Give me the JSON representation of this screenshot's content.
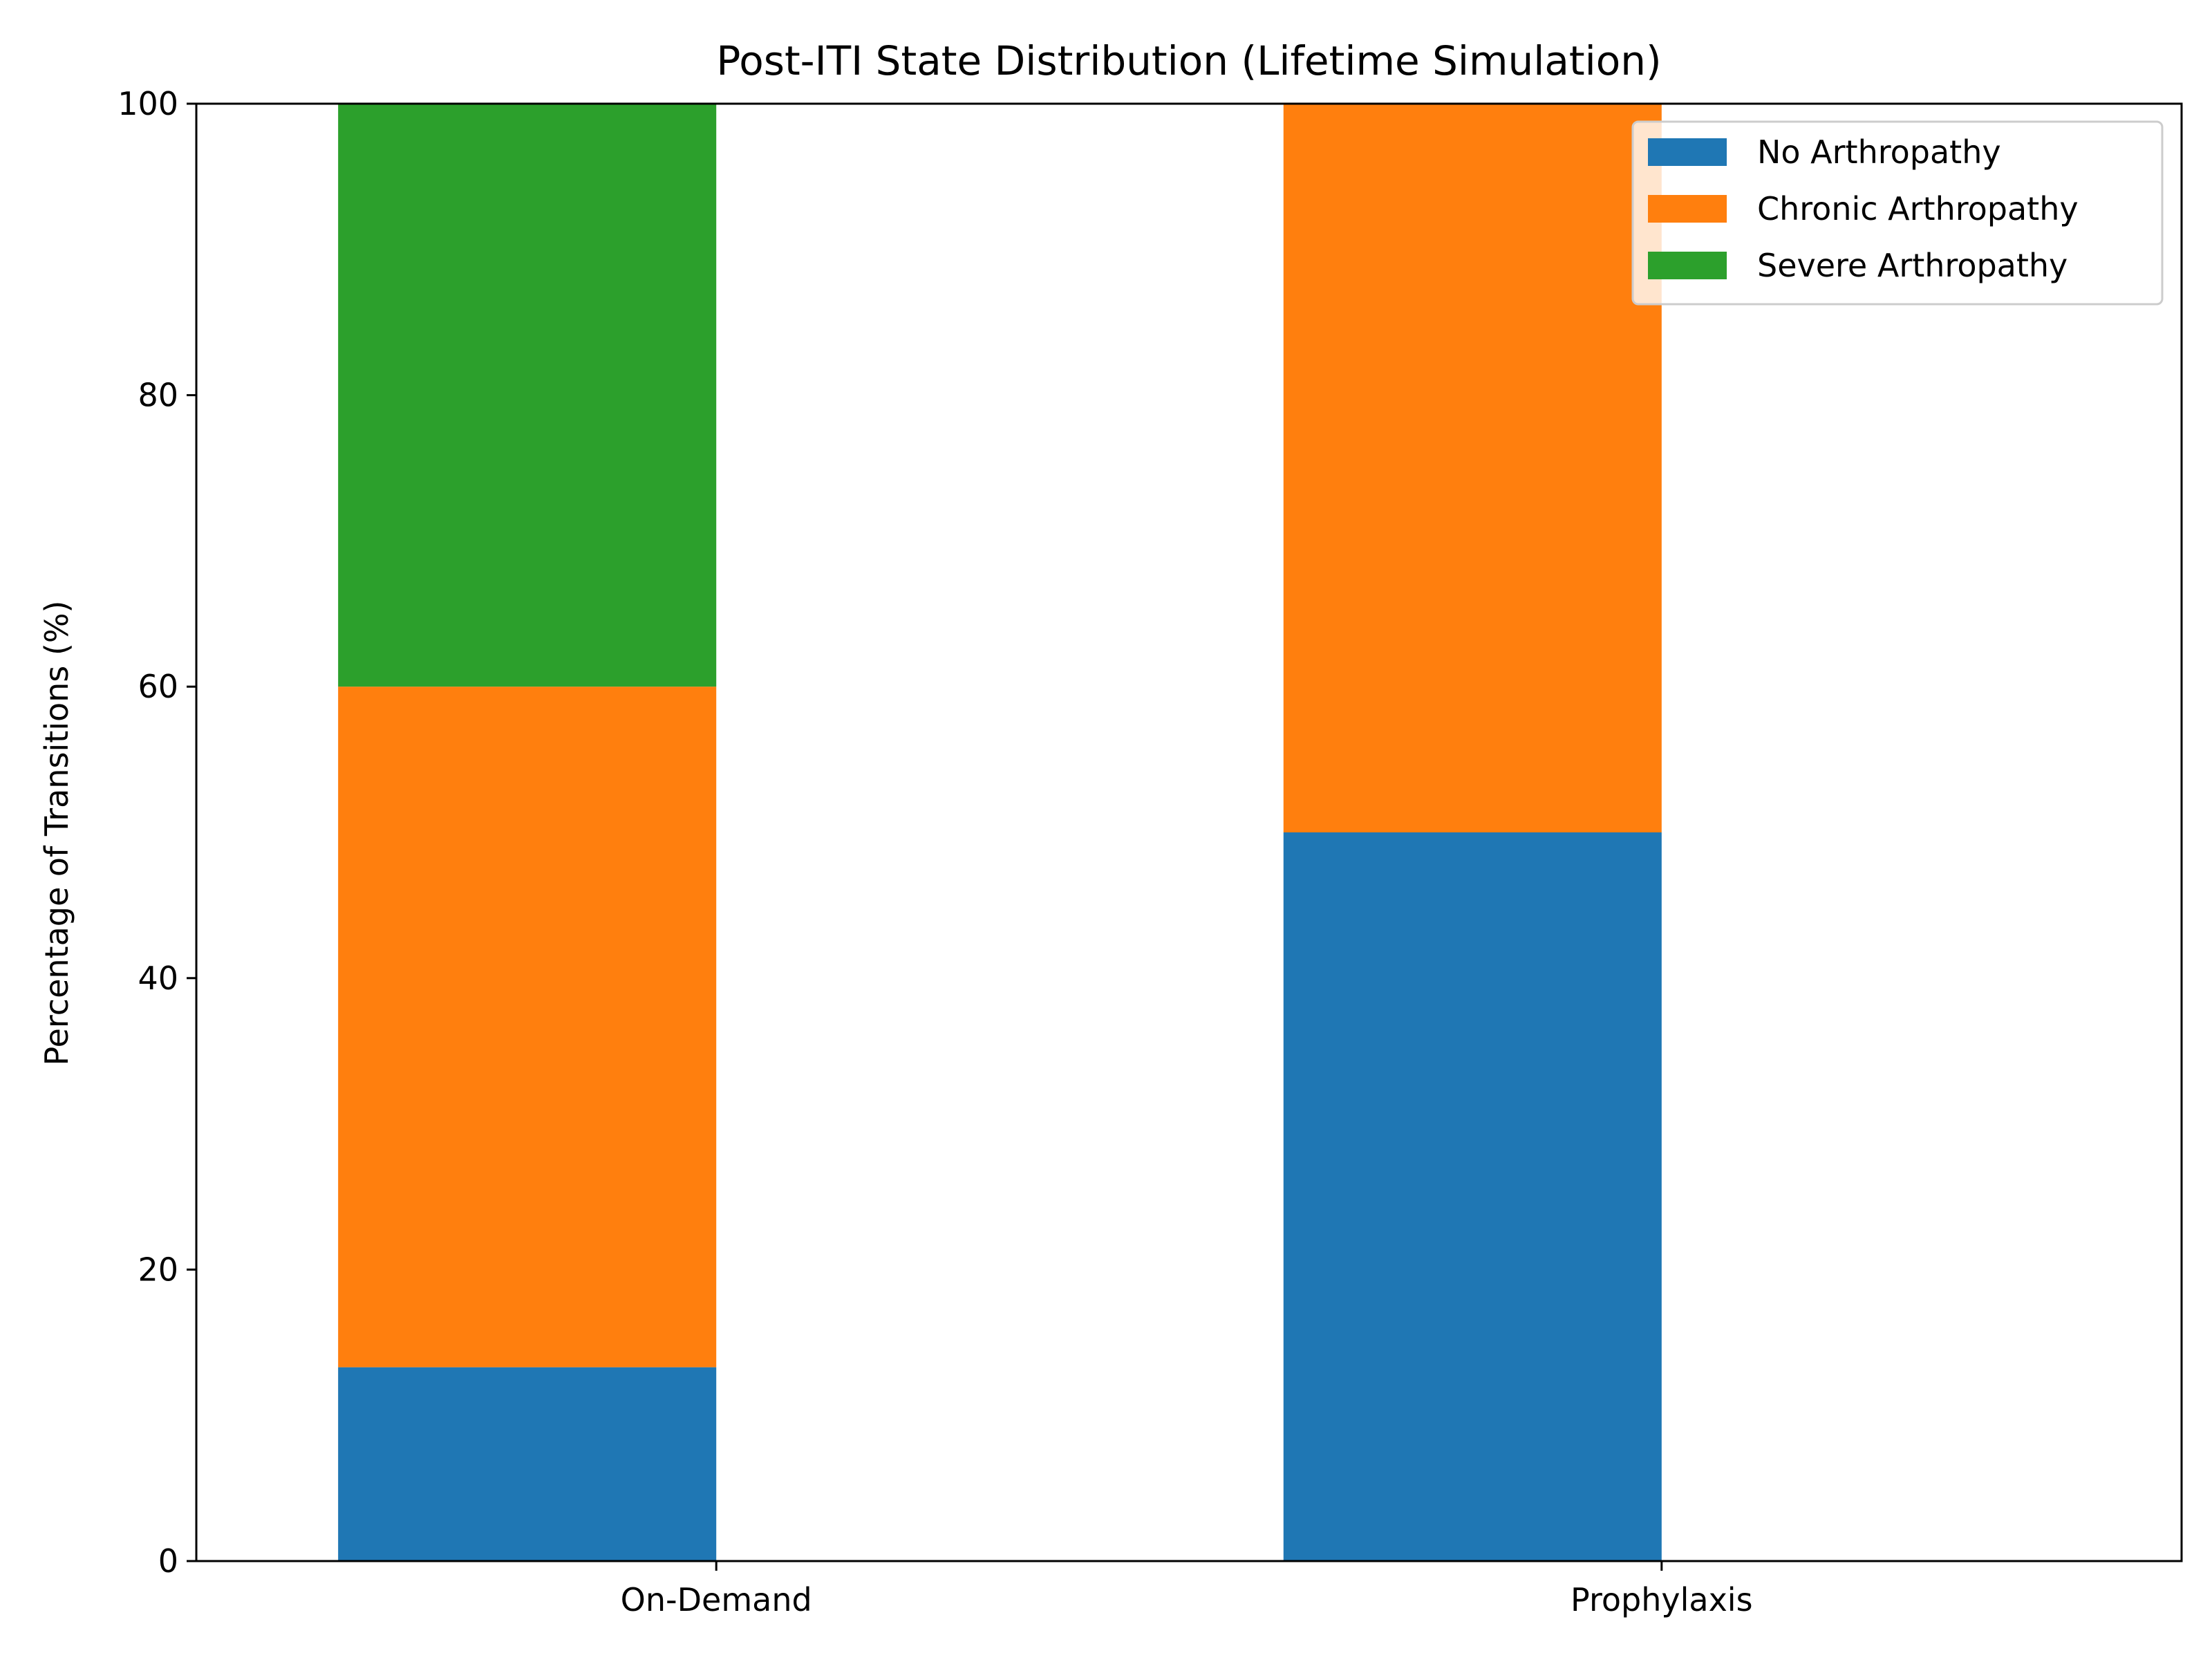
{
  "chart_data": {
    "type": "bar",
    "stacked": true,
    "title": "Post-ITI State Distribution (Lifetime Simulation)",
    "xlabel": "",
    "ylabel": "Percentage of Transitions (%)",
    "categories": [
      "On-Demand",
      "Prophylaxis"
    ],
    "series": [
      {
        "name": "No Arthropathy",
        "values": [
          13.3,
          50.0
        ],
        "color": "#1f77b4"
      },
      {
        "name": "Chronic Arthropathy",
        "values": [
          46.7,
          50.0
        ],
        "color": "#ff7f0e"
      },
      {
        "name": "Severe Arthropathy",
        "values": [
          40.0,
          0.0
        ],
        "color": "#2ca02c"
      }
    ],
    "ylim": [
      0,
      100
    ],
    "yticks": [
      0,
      20,
      40,
      60,
      80,
      100
    ],
    "grid": false,
    "legend_position": "upper right"
  }
}
